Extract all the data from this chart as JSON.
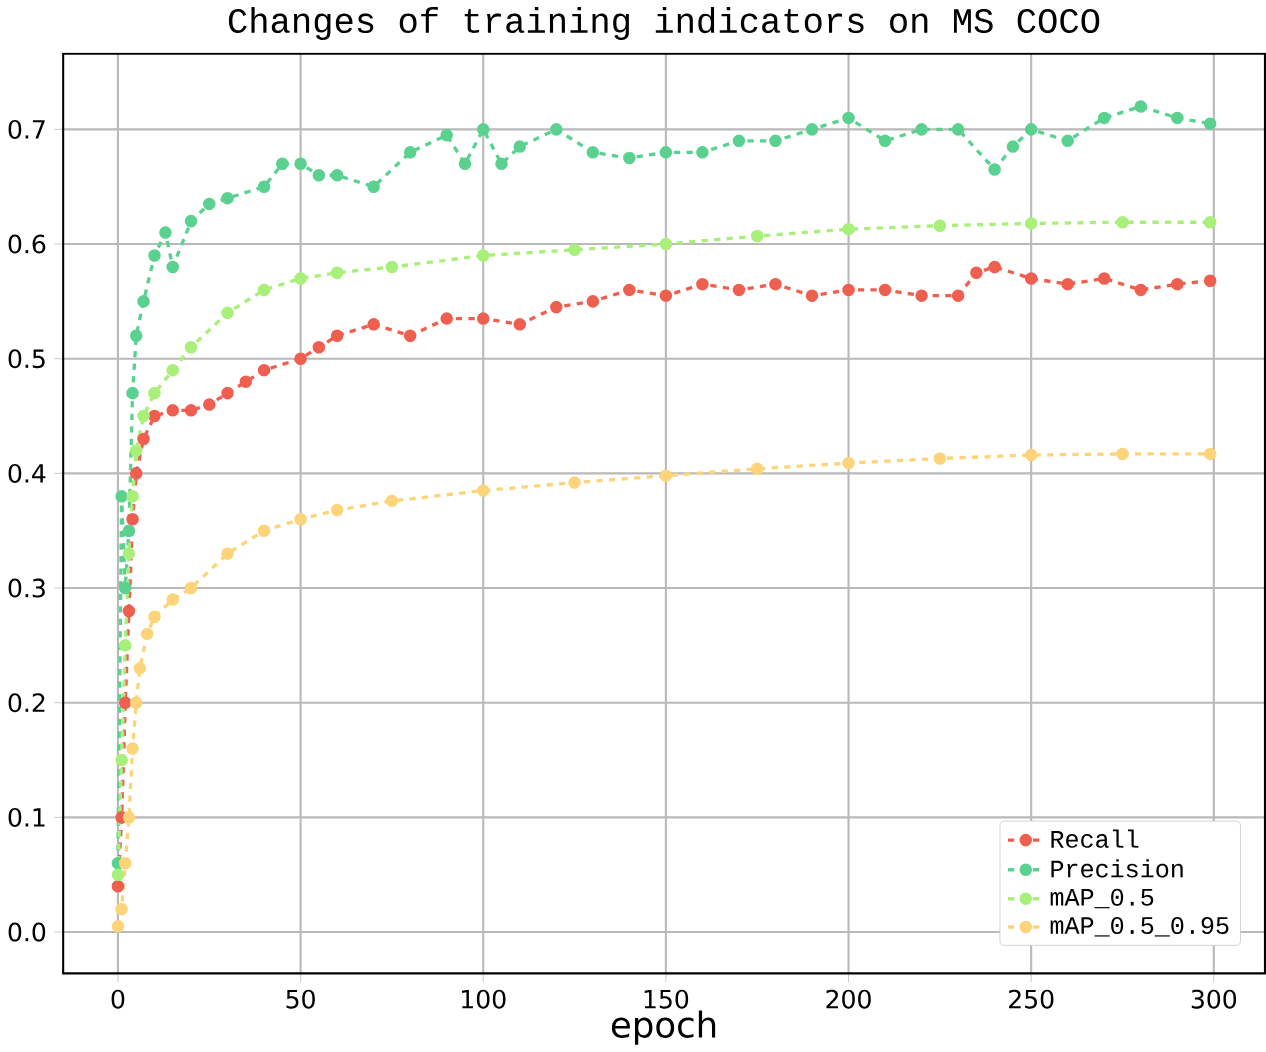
{
  "chart_data": {
    "type": "line",
    "title": "Changes of training indicators on MS COCO",
    "xlabel": "epoch",
    "xlim": [
      -15,
      314
    ],
    "ylim": [
      -0.036,
      0.766
    ],
    "xticks": [
      0,
      50,
      100,
      150,
      200,
      250,
      300
    ],
    "yticks": [
      {
        "value": 0,
        "label": "0.0"
      },
      0.1,
      0.2,
      0.3,
      0.4,
      0.5,
      0.6,
      0.7
    ],
    "grid": true,
    "legend": "bottom right",
    "marker": "circle",
    "line_style": "dashed",
    "series": [
      {
        "name": "Recall",
        "color": "#ef5f50",
        "x": [
          0,
          1,
          2,
          3,
          4,
          5,
          7,
          10,
          15,
          20,
          25,
          30,
          35,
          40,
          50,
          55,
          60,
          70,
          80,
          90,
          100,
          110,
          120,
          130,
          140,
          150,
          160,
          170,
          180,
          190,
          200,
          210,
          220,
          230,
          235,
          240,
          250,
          260,
          270,
          280,
          290,
          299
        ],
        "values": [
          0.04,
          0.1,
          0.2,
          0.28,
          0.36,
          0.4,
          0.43,
          0.45,
          0.455,
          0.455,
          0.46,
          0.47,
          0.48,
          0.49,
          0.5,
          0.51,
          0.52,
          0.53,
          0.52,
          0.535,
          0.535,
          0.53,
          0.545,
          0.55,
          0.56,
          0.555,
          0.565,
          0.56,
          0.565,
          0.555,
          0.56,
          0.56,
          0.555,
          0.555,
          0.575,
          0.58,
          0.57,
          0.565,
          0.57,
          0.56,
          0.565,
          0.568
        ]
      },
      {
        "name": "Precision",
        "color": "#5bd190",
        "x": [
          0,
          1,
          2,
          3,
          4,
          5,
          7,
          10,
          13,
          15,
          20,
          25,
          30,
          40,
          45,
          50,
          55,
          60,
          70,
          80,
          90,
          95,
          100,
          105,
          110,
          120,
          130,
          140,
          150,
          160,
          170,
          180,
          190,
          200,
          210,
          220,
          230,
          240,
          245,
          250,
          260,
          270,
          280,
          290,
          299
        ],
        "values": [
          0.06,
          0.38,
          0.3,
          0.35,
          0.47,
          0.52,
          0.55,
          0.59,
          0.61,
          0.58,
          0.62,
          0.635,
          0.64,
          0.65,
          0.67,
          0.67,
          0.66,
          0.66,
          0.65,
          0.68,
          0.695,
          0.67,
          0.7,
          0.67,
          0.685,
          0.7,
          0.68,
          0.675,
          0.68,
          0.68,
          0.69,
          0.69,
          0.7,
          0.71,
          0.69,
          0.7,
          0.7,
          0.665,
          0.685,
          0.7,
          0.69,
          0.71,
          0.72,
          0.71,
          0.705
        ]
      },
      {
        "name": "mAP_0.5",
        "color": "#a8f07a",
        "x": [
          0,
          1,
          2,
          3,
          4,
          5,
          7,
          10,
          15,
          20,
          30,
          40,
          50,
          60,
          75,
          100,
          125,
          150,
          175,
          200,
          225,
          250,
          275,
          299
        ],
        "values": [
          0.05,
          0.15,
          0.25,
          0.33,
          0.38,
          0.42,
          0.45,
          0.47,
          0.49,
          0.51,
          0.54,
          0.56,
          0.57,
          0.575,
          0.58,
          0.59,
          0.595,
          0.6,
          0.607,
          0.613,
          0.616,
          0.618,
          0.619,
          0.619
        ]
      },
      {
        "name": "mAP_0.5_0.95",
        "color": "#fdd47a",
        "x": [
          0,
          1,
          2,
          3,
          4,
          5,
          6,
          8,
          10,
          15,
          20,
          30,
          40,
          50,
          60,
          75,
          100,
          125,
          150,
          175,
          200,
          225,
          250,
          275,
          299
        ],
        "values": [
          0.005,
          0.02,
          0.06,
          0.1,
          0.16,
          0.2,
          0.23,
          0.26,
          0.275,
          0.29,
          0.3,
          0.33,
          0.35,
          0.36,
          0.368,
          0.376,
          0.385,
          0.392,
          0.398,
          0.404,
          0.409,
          0.413,
          0.416,
          0.417,
          0.417
        ]
      }
    ]
  }
}
